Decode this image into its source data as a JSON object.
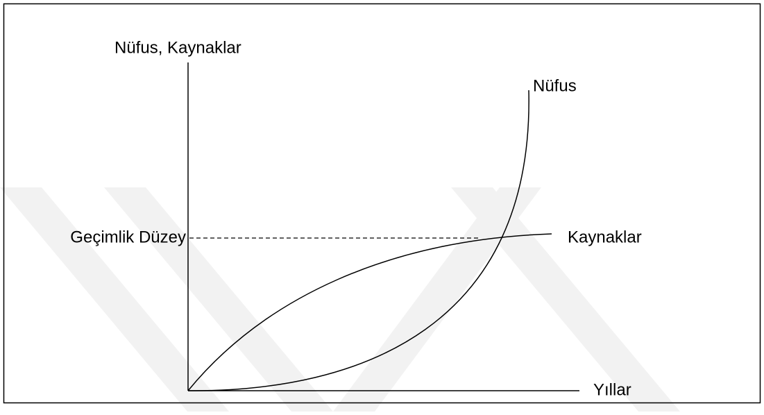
{
  "axes": {
    "y_label": "Nüfus, Kaynaklar",
    "x_label": "Yıllar"
  },
  "curves": {
    "population": "Nüfus",
    "resources": "Kaynaklar"
  },
  "level": {
    "label": "Geçimlik Düzey"
  }
}
